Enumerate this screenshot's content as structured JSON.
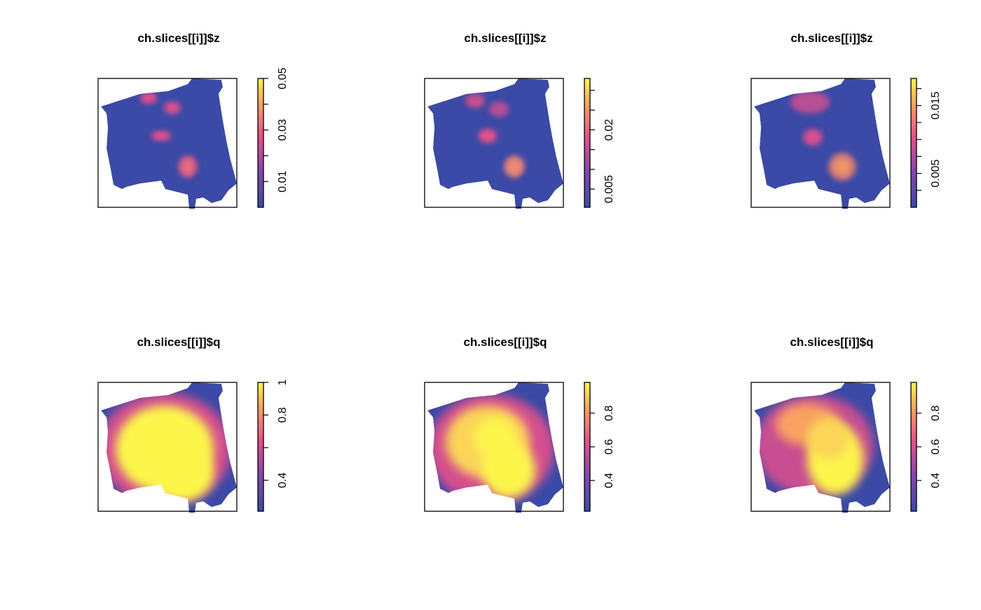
{
  "chart_data": [
    {
      "type": "heatmap",
      "title": "ch.slices[[i]]$z",
      "zlim": [
        0,
        0.05
      ],
      "zticks": [
        0.01,
        {
          "value": 0.02,
          "label": null
        },
        0.03,
        {
          "value": 0.04,
          "label": null
        },
        0.05
      ]
    },
    {
      "type": "heatmap",
      "title": "ch.slices[[i]]$z",
      "zlim": [
        0.0004,
        0.033
      ],
      "zticks": [
        0.005,
        {
          "value": 0.01,
          "label": null
        },
        {
          "value": 0.015,
          "label": null
        },
        0.02,
        {
          "value": 0.025,
          "label": null
        },
        {
          "value": 0.03,
          "label": null
        }
      ]
    },
    {
      "type": "heatmap",
      "title": "ch.slices[[i]]$z",
      "zlim": [
        0,
        0.019
      ],
      "zticks": [
        {
          "value": 0.0025,
          "label": null
        },
        0.005,
        {
          "value": 0.0075,
          "label": null
        },
        {
          "value": 0.01,
          "label": null
        },
        {
          "value": 0.0125,
          "label": null
        },
        0.015,
        {
          "value": 0.0175,
          "label": null
        }
      ]
    },
    {
      "type": "heatmap",
      "title": "ch.slices[[i]]$q",
      "zlim": [
        0.21,
        1
      ],
      "zticks": [
        0.4,
        {
          "value": 0.6,
          "label": null
        },
        0.8,
        1
      ]
    },
    {
      "type": "heatmap",
      "title": "ch.slices[[i]]$q",
      "zlim": [
        0.217,
        0.983
      ],
      "zticks": [
        0.4,
        0.6,
        0.8
      ]
    },
    {
      "type": "heatmap",
      "title": "ch.slices[[i]]$q",
      "zlim": [
        0.217,
        0.983
      ],
      "zticks": [
        0.4,
        0.6,
        0.8
      ]
    }
  ]
}
